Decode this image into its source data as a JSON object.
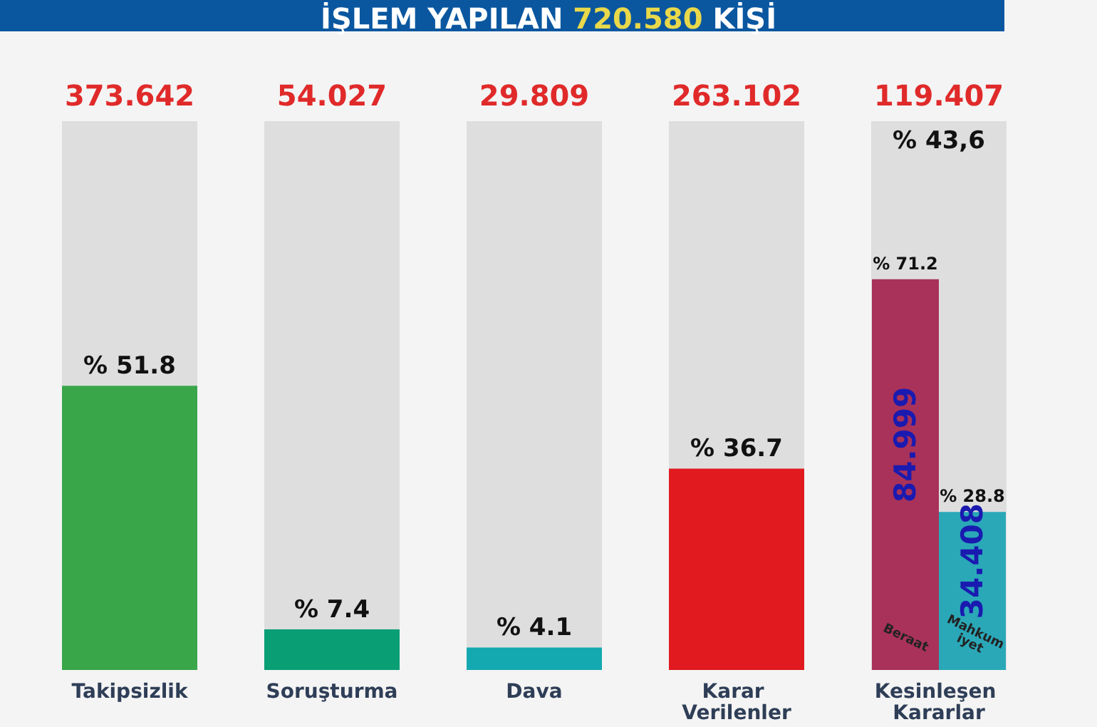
{
  "chart_data": {
    "type": "bar",
    "title": "İŞLEM YAPILAN 720.580 KİŞİ",
    "categories": [
      "Takipsizlik",
      "Soruşturma",
      "Dava",
      "Karar Verilenler",
      "Kesinleşen Kararlar"
    ],
    "series": [
      {
        "colors": [
          "#3aa64a",
          "#0a9e74",
          "#14a9b0",
          "#e01a1f",
          null
        ],
        "values": [
          51.8,
          7.4,
          4.1,
          36.7,
          null
        ],
        "value_labels": [
          "% 51.8",
          "% 7.4",
          "% 4.1",
          "% 36.7",
          null
        ]
      },
      {
        "name": "Beraat",
        "color": "#a8325a",
        "values": [
          null,
          null,
          null,
          null,
          71.2
        ],
        "value_labels": [
          null,
          null,
          null,
          null,
          "% 71.2"
        ]
      },
      {
        "name": "Mahkumiyet",
        "color": "#2aa8b8",
        "values": [
          null,
          null,
          null,
          null,
          28.8
        ],
        "value_labels": [
          null,
          null,
          null,
          null,
          "% 28.8"
        ]
      }
    ],
    "ylim": [
      0,
      100
    ],
    "tick_labels": "x",
    "annotations": [
      "373.642",
      "54.027",
      "29.809",
      "263.102",
      "119.407",
      "% 43,6",
      "84.999",
      "34.408"
    ]
  }
}
